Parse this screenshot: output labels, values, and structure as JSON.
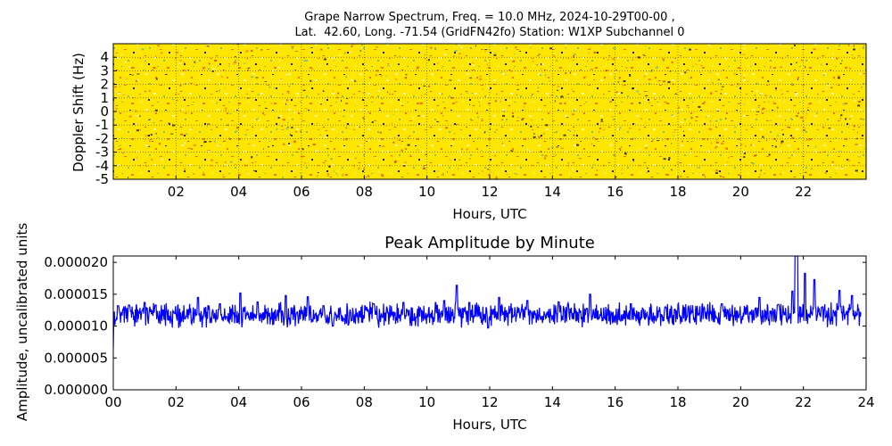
{
  "figure": {
    "title_line1": "Grape Narrow Spectrum, Freq. = 10.0 MHz, 2024-10-29T00-00 ,",
    "title_line2": "Lat.  42.60, Long. -71.54 (GridFN42fo) Station: W1XP Subchannel 0"
  },
  "chart_data": [
    {
      "type": "heatmap",
      "title": "Grape Narrow Spectrum, Freq. = 10.0 MHz, 2024-10-29T00-00 , Lat.  42.60, Long. -71.54 (GridFN42fo) Station: W1XP Subchannel 0",
      "xlabel": "Hours, UTC",
      "ylabel": "Doppler Shift (Hz)",
      "xlim": [
        0,
        24
      ],
      "ylim": [
        -5,
        5
      ],
      "x_ticks": [
        2,
        4,
        6,
        8,
        10,
        12,
        14,
        16,
        18,
        20,
        22
      ],
      "x_tick_labels": [
        "02",
        "04",
        "06",
        "08",
        "10",
        "12",
        "14",
        "16",
        "18",
        "20",
        "22"
      ],
      "y_ticks": [
        4,
        3,
        2,
        1,
        0,
        -1,
        -2,
        -3,
        -4,
        -5
      ],
      "y_tick_labels": [
        "4",
        "3",
        "2",
        "1",
        "0",
        "-1",
        "-2",
        "-3",
        "-4",
        "-5"
      ],
      "colors": {
        "dominant": "#ffe600",
        "speckle_light": "#fff59a",
        "speckle_orange": "#f07a1a",
        "speckle_green": "#7fc27f",
        "speckle_dark": "#222222"
      },
      "grid": true,
      "description_of_values": "noise-like spectrum; predominantly yellow with scattered red, green and dark speckles"
    },
    {
      "type": "line",
      "title": "Peak Amplitude by Minute",
      "xlabel": "Hours, UTC",
      "ylabel": "Amplitude, uncalibrated units",
      "xlim": [
        0,
        24
      ],
      "ylim": [
        0,
        2.1e-05
      ],
      "x_ticks": [
        0,
        2,
        4,
        6,
        8,
        10,
        12,
        14,
        16,
        18,
        20,
        22,
        24
      ],
      "x_tick_labels": [
        "00",
        "02",
        "04",
        "06",
        "08",
        "10",
        "12",
        "14",
        "16",
        "18",
        "20",
        "22",
        "24"
      ],
      "y_ticks": [
        0,
        5e-06,
        1e-05,
        1.5e-05,
        2e-05
      ],
      "y_tick_labels": [
        "0.000000",
        "0.000005",
        "0.000010",
        "0.000015",
        "0.000020"
      ],
      "grid": false,
      "series": [
        {
          "color": "#0000ff",
          "baseline": 1.18e-05,
          "start_value": 6.5e-06,
          "spikes": [
            [
              0.15,
              1.32e-05
            ],
            [
              0.5,
              1.33e-05
            ],
            [
              1.0,
              1.37e-05
            ],
            [
              1.35,
              1.33e-05
            ],
            [
              2.7,
              1.45e-05
            ],
            [
              3.4,
              1.35e-05
            ],
            [
              4.05,
              1.52e-05
            ],
            [
              4.6,
              1.38e-05
            ],
            [
              5.5,
              1.48e-05
            ],
            [
              6.2,
              1.46e-05
            ],
            [
              6.7,
              1.32e-05
            ],
            [
              7.0,
              1e-05
            ],
            [
              8.3,
              1.35e-05
            ],
            [
              9.25,
              1.37e-05
            ],
            [
              10.55,
              1.4e-05
            ],
            [
              10.95,
              1.64e-05
            ],
            [
              11.35,
              1.37e-05
            ],
            [
              11.95,
              9.7e-06
            ],
            [
              12.3,
              1.45e-05
            ],
            [
              13.2,
              1.4e-05
            ],
            [
              14.2,
              1.38e-05
            ],
            [
              15.2,
              1.5e-05
            ],
            [
              16.5,
              1.35e-05
            ],
            [
              17.6,
              1.3e-05
            ],
            [
              19.4,
              1.35e-05
            ],
            [
              20.6,
              1.45e-05
            ],
            [
              21.2,
              1.34e-05
            ],
            [
              21.65,
              1.55e-05
            ],
            [
              21.75,
              2.1e-05
            ],
            [
              21.8,
              2.1e-05
            ],
            [
              22.05,
              1.83e-05
            ],
            [
              22.35,
              1.73e-05
            ],
            [
              22.6,
              1.3e-05
            ],
            [
              23.15,
              1.56e-05
            ],
            [
              23.55,
              1.48e-05
            ],
            [
              23.9,
              1.24e-05
            ]
          ]
        }
      ]
    }
  ]
}
